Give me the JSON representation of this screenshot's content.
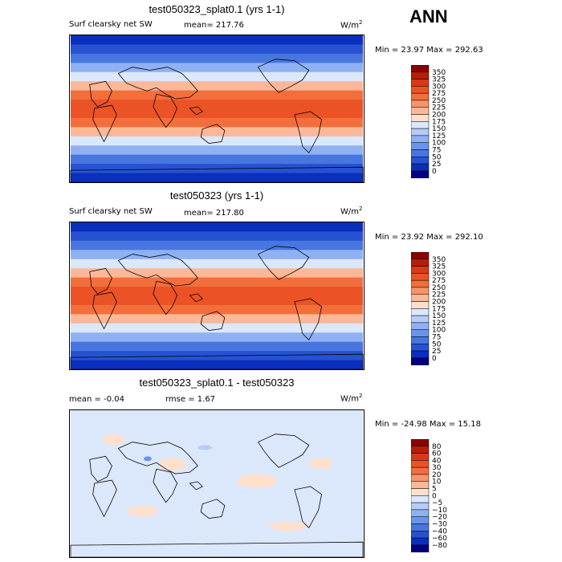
{
  "season": "ANN",
  "colors": {
    "ocean_blue": "#2b5cd8",
    "land_outline": "#000000",
    "background": "#ffffff"
  },
  "chart_data": [
    {
      "type": "heatmap",
      "title": "test050323_splat0.1 (yrs 1-1)",
      "left_label": "Surf clearsky net SW",
      "mean_text": "mean= 217.76",
      "units": "W/m",
      "units_exp": "2",
      "min_max_text": "Min =  23.97 Max = 292.63",
      "min": 23.97,
      "max": 292.63,
      "mean": 217.76,
      "levels": [
        "350",
        "325",
        "300",
        "275",
        "250",
        "225",
        "200",
        "175",
        "150",
        "125",
        "100",
        "75",
        "50",
        "25",
        "0"
      ],
      "level_colors": [
        "#8b0000",
        "#b51f0a",
        "#d9381a",
        "#eb5326",
        "#f26f3c",
        "#f7946a",
        "#fbb898",
        "#fde0cc",
        "#dbe7fb",
        "#b5ccf8",
        "#8fb1f3",
        "#6a94ec",
        "#4876e0",
        "#2652d2",
        "#0a2fbd",
        "#000080"
      ]
    },
    {
      "type": "heatmap",
      "title": "test050323 (yrs 1-1)",
      "left_label": "Surf clearsky net SW",
      "mean_text": "mean= 217.80",
      "units": "W/m",
      "units_exp": "2",
      "min_max_text": "Min =  23.92 Max = 292.10",
      "min": 23.92,
      "max": 292.1,
      "mean": 217.8,
      "levels": [
        "350",
        "325",
        "300",
        "275",
        "250",
        "225",
        "200",
        "175",
        "150",
        "125",
        "100",
        "75",
        "50",
        "25",
        "0"
      ],
      "level_colors": [
        "#8b0000",
        "#b51f0a",
        "#d9381a",
        "#eb5326",
        "#f26f3c",
        "#f7946a",
        "#fbb898",
        "#fde0cc",
        "#dbe7fb",
        "#b5ccf8",
        "#8fb1f3",
        "#6a94ec",
        "#4876e0",
        "#2652d2",
        "#0a2fbd",
        "#000080"
      ]
    },
    {
      "type": "heatmap",
      "title": "test050323_splat0.1 - test050323",
      "left_label": "mean =   -0.04",
      "mean_text": "rmse =   1.67",
      "units": "W/m",
      "units_exp": "2",
      "min_max_text": "Min = -24.98 Max =  15.18",
      "min": -24.98,
      "max": 15.18,
      "mean": -0.04,
      "rmse": 1.67,
      "levels": [
        "80",
        "60",
        "40",
        "30",
        "20",
        "10",
        "5",
        "0",
        "−5",
        "−10",
        "−20",
        "−30",
        "−40",
        "−60",
        "−80"
      ],
      "level_colors": [
        "#8b0000",
        "#b51f0a",
        "#d9381a",
        "#eb5326",
        "#f26f3c",
        "#f7946a",
        "#fbb898",
        "#fde0cc",
        "#dbe7fb",
        "#b5ccf8",
        "#8fb1f3",
        "#6a94ec",
        "#4876e0",
        "#2652d2",
        "#0a2fbd",
        "#000080"
      ]
    }
  ]
}
